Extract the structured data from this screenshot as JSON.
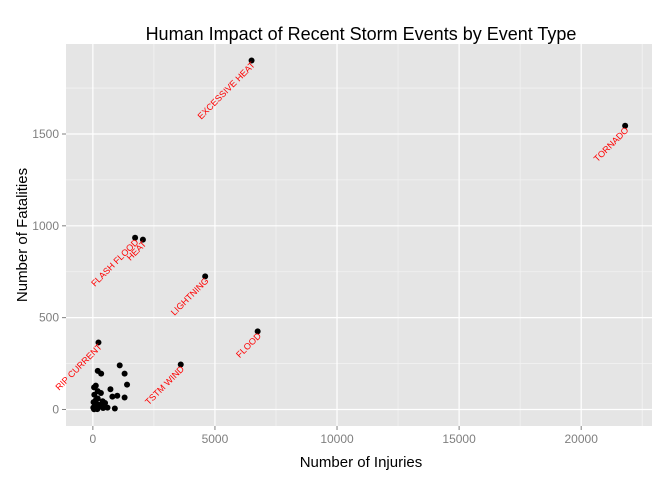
{
  "chart_data": {
    "type": "scatter",
    "title": "Human Impact of Recent Storm Events by Event Type",
    "xlabel": "Number of Injuries",
    "ylabel": "Number of Fatalities",
    "xlim": [
      -1100,
      22900
    ],
    "ylim": [
      -90,
      1990
    ],
    "x_ticks": [
      0,
      5000,
      10000,
      15000,
      20000
    ],
    "y_ticks": [
      0,
      500,
      1000,
      1500
    ],
    "x_minor_ticks": [
      2500,
      7500,
      12500,
      17500,
      22500
    ],
    "y_minor_ticks": [
      250,
      750,
      1250,
      1750
    ],
    "grid": true,
    "panel_color": "#e5e5e5",
    "grid_color": "#ffffff",
    "point_color": "#000000",
    "label_color": "#ff0000",
    "labeled_points": [
      {
        "label": "EXCESSIVE HEAT",
        "x": 6500,
        "y": 1900
      },
      {
        "label": "TORNADO",
        "x": 21800,
        "y": 1545
      },
      {
        "label": "FLASH FLOOD",
        "x": 1730,
        "y": 935
      },
      {
        "label": "HEAT",
        "x": 2050,
        "y": 925
      },
      {
        "label": "LIGHTNING",
        "x": 4600,
        "y": 725
      },
      {
        "label": "FLOOD",
        "x": 6750,
        "y": 425
      },
      {
        "label": "RIP CURRENT",
        "x": 230,
        "y": 365
      },
      {
        "label": "TSTM WIND",
        "x": 3600,
        "y": 245
      }
    ],
    "other_points": [
      {
        "x": 1100,
        "y": 240
      },
      {
        "x": 200,
        "y": 210
      },
      {
        "x": 340,
        "y": 195
      },
      {
        "x": 1300,
        "y": 195
      },
      {
        "x": 1400,
        "y": 135
      },
      {
        "x": 120,
        "y": 130
      },
      {
        "x": 50,
        "y": 120
      },
      {
        "x": 720,
        "y": 110
      },
      {
        "x": 200,
        "y": 100
      },
      {
        "x": 330,
        "y": 90
      },
      {
        "x": 60,
        "y": 80
      },
      {
        "x": 1000,
        "y": 75
      },
      {
        "x": 800,
        "y": 70
      },
      {
        "x": 1300,
        "y": 65
      },
      {
        "x": 200,
        "y": 60
      },
      {
        "x": 120,
        "y": 50
      },
      {
        "x": 400,
        "y": 45
      },
      {
        "x": 30,
        "y": 40
      },
      {
        "x": 500,
        "y": 35
      },
      {
        "x": 150,
        "y": 30
      },
      {
        "x": 250,
        "y": 25
      },
      {
        "x": 80,
        "y": 20
      },
      {
        "x": 350,
        "y": 15
      },
      {
        "x": 600,
        "y": 10
      },
      {
        "x": 20,
        "y": 10
      },
      {
        "x": 100,
        "y": 5
      },
      {
        "x": 900,
        "y": 5
      },
      {
        "x": 180,
        "y": 2
      },
      {
        "x": 420,
        "y": 8
      },
      {
        "x": 50,
        "y": 1
      }
    ]
  }
}
